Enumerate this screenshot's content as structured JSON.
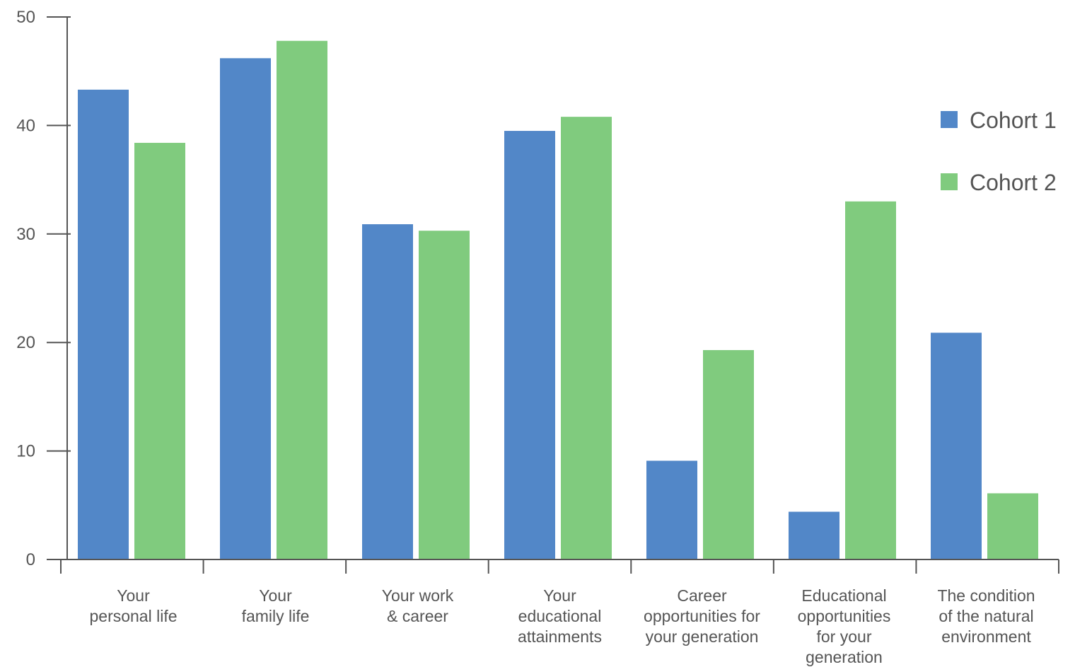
{
  "chart_data": {
    "type": "bar",
    "title": "",
    "xlabel": "",
    "ylabel": "",
    "ylim": [
      0,
      50
    ],
    "yticks": [
      0,
      10,
      20,
      30,
      40,
      50
    ],
    "grid": false,
    "legend_position": "right",
    "categories": [
      [
        "Your",
        "personal life"
      ],
      [
        "Your",
        "family life"
      ],
      [
        "Your work",
        "& career"
      ],
      [
        "Your",
        "educational",
        "attainments"
      ],
      [
        "Career",
        "opportunities for",
        "your generation"
      ],
      [
        "Educational",
        "opportunities",
        "for your",
        "generation"
      ],
      [
        "The condition",
        "of the natural",
        "environment"
      ]
    ],
    "series": [
      {
        "name": "Cohort 1",
        "color": "#5287c8",
        "values": [
          43.3,
          46.2,
          30.9,
          39.5,
          9.1,
          4.4,
          20.9
        ]
      },
      {
        "name": "Cohort 2",
        "color": "#80cb7e",
        "values": [
          38.4,
          47.8,
          30.3,
          40.8,
          19.3,
          33.0,
          6.1
        ]
      }
    ]
  }
}
